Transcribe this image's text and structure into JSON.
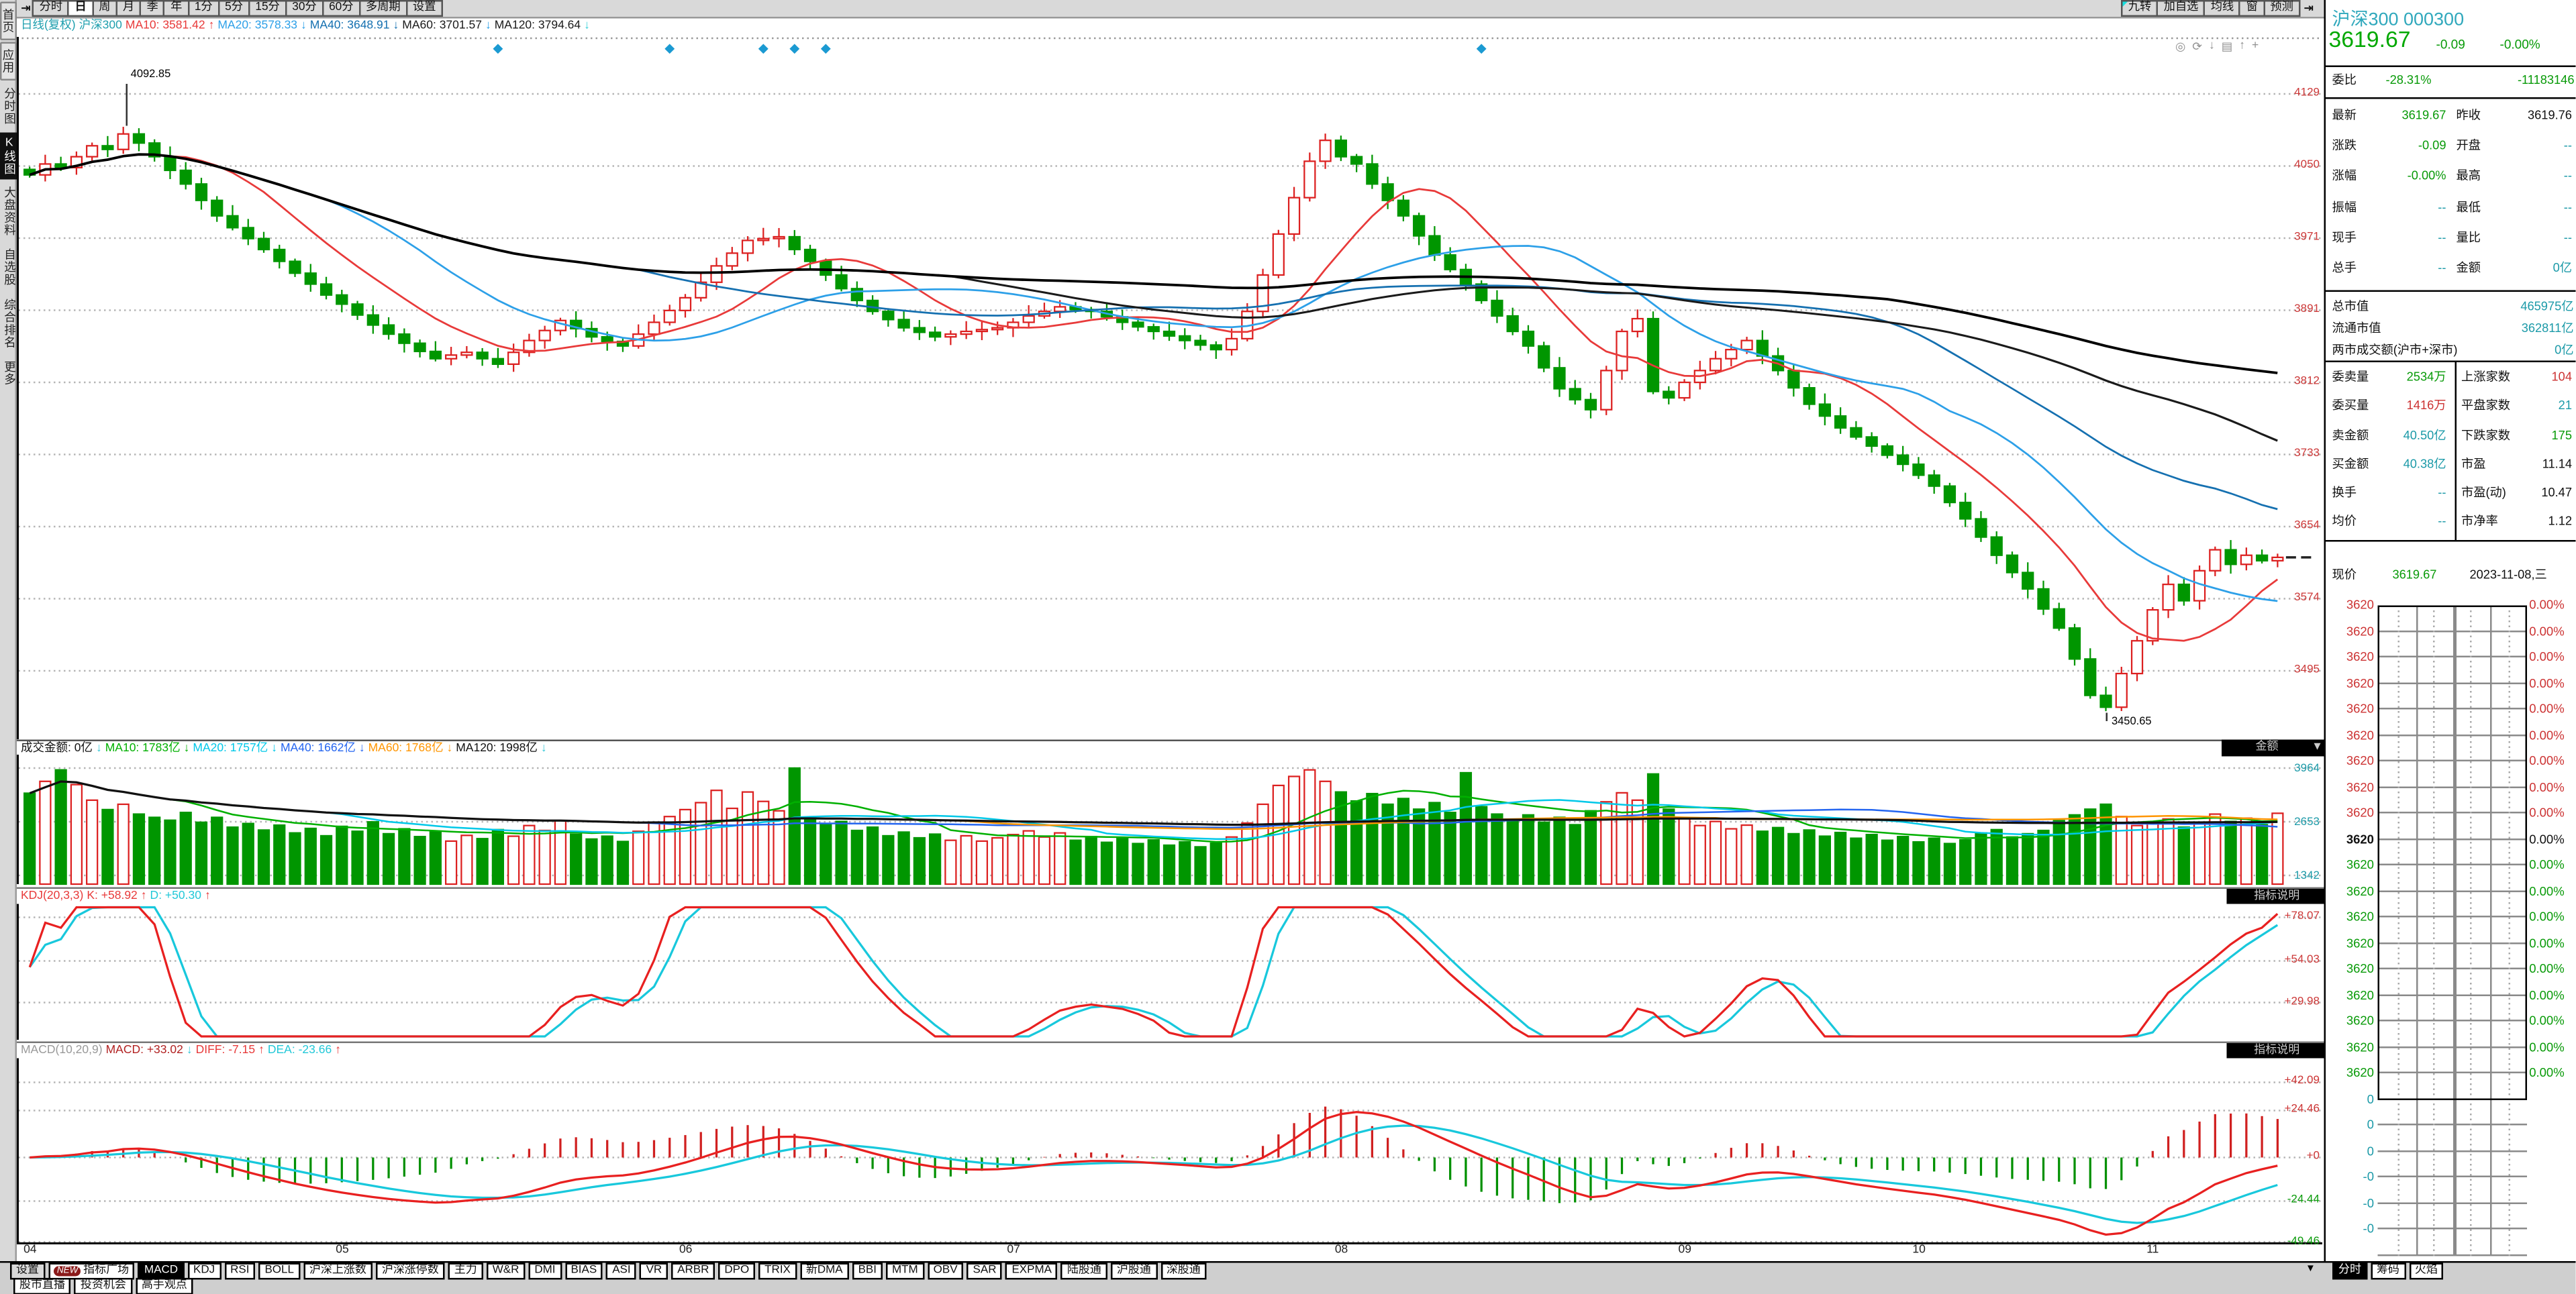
{
  "window": {
    "title": "K线图"
  },
  "sidebar": {
    "items": [
      {
        "label": "首页",
        "style": "raised"
      },
      {
        "label": "应用",
        "style": "raised"
      },
      {
        "label": "分时图",
        "style": "flat"
      },
      {
        "label": "K线图",
        "style": "flat",
        "selected": true
      },
      {
        "label": "大盘资料",
        "style": "flat"
      },
      {
        "label": "自选股",
        "style": "flat"
      },
      {
        "label": "综合排名",
        "style": "flat"
      },
      {
        "label": "更多",
        "style": "flat"
      }
    ]
  },
  "toolbar": {
    "collapse_icon": "⇥",
    "periods": [
      "分时",
      "日",
      "周",
      "月",
      "季",
      "年",
      "1分",
      "5分",
      "15分",
      "30分",
      "60分",
      "多周期",
      "设置"
    ],
    "selected_period": "日",
    "right_items": [
      "九转",
      "加自选",
      "均线",
      "窗",
      "预测"
    ],
    "panel_collapse_icon": "⇥"
  },
  "chart_tool_icons": [
    {
      "name": "eye-icon",
      "glyph": "◎"
    },
    {
      "name": "refresh-icon",
      "glyph": "⟳"
    },
    {
      "name": "download-icon",
      "glyph": "↓"
    },
    {
      "name": "print-icon",
      "glyph": "▤"
    },
    {
      "name": "export-icon",
      "glyph": "↑"
    },
    {
      "name": "add-icon",
      "glyph": "+"
    }
  ],
  "main_header": {
    "items": [
      {
        "text": "日线(复权)",
        "color": "#1f9fae"
      },
      {
        "text": "沪深300",
        "color": "#1f9fae"
      },
      {
        "text": "MA10: 3581.42",
        "color": "#e83a3a",
        "arrow": "↑",
        "arrow_color": "#e83a3a"
      },
      {
        "text": "MA20: 3578.33",
        "color": "#2da0e8",
        "arrow": "↓",
        "arrow_color": "#2da0e8"
      },
      {
        "text": "MA40: 3648.91",
        "color": "#1570b0",
        "arrow": "↓",
        "arrow_color": "#1570b0"
      },
      {
        "text": "MA60: 3701.57",
        "color": "#1a1a1a",
        "arrow": "↓",
        "arrow_color": "#2da0e8"
      },
      {
        "text": "MA120: 3794.64",
        "color": "#1a1a1a",
        "arrow": "↓",
        "arrow_color": "#35d0d8"
      }
    ]
  },
  "volume_header": {
    "items": [
      {
        "text": "成交金额: 0亿",
        "color": "#111",
        "arrow": "↓",
        "arrow_color": "#35c8d8"
      },
      {
        "text": "MA10: 1783亿",
        "color": "#00b000",
        "arrow": "↓",
        "arrow_color": "#00b000"
      },
      {
        "text": "MA20: 1757亿",
        "color": "#00c8e8",
        "arrow": "↓",
        "arrow_color": "#00c8e8"
      },
      {
        "text": "MA40: 1662亿",
        "color": "#2465f0",
        "arrow": "↓",
        "arrow_color": "#2465f0"
      },
      {
        "text": "MA60: 1768亿",
        "color": "#ff9500",
        "arrow": "↓",
        "arrow_color": "#ff9500"
      },
      {
        "text": "MA120: 1998亿",
        "color": "#111",
        "arrow": "↓",
        "arrow_color": "#35c8d8"
      }
    ],
    "amount_button": {
      "label": "金额",
      "arrow": "▼"
    }
  },
  "kdj_header": {
    "items": [
      {
        "text": "KDJ(20,3,3)",
        "color": "#e83a3a"
      },
      {
        "text": "K: +58.92",
        "color": "#e83a3a",
        "arrow": "↑",
        "arrow_color": "#e83a3a"
      },
      {
        "text": "D: +50.30",
        "color": "#22c8d8",
        "arrow": "↑",
        "arrow_color": "#e83a3a"
      }
    ],
    "button": "指标说明"
  },
  "macd_header": {
    "items": [
      {
        "text": "MACD(10,20,9)",
        "color": "#999999"
      },
      {
        "text": "MACD: +33.02",
        "color": "#b22222",
        "arrow": "↓",
        "arrow_color": "#35c8d8"
      },
      {
        "text": "DIFF: -7.15",
        "color": "#e83a3a",
        "arrow": "↑",
        "arrow_color": "#e83a3a"
      },
      {
        "text": "DEA: -23.66",
        "color": "#22c8d8",
        "arrow": "↑",
        "arrow_color": "#e83a3a"
      }
    ],
    "button": "指标说明"
  },
  "axis": {
    "main_labels": [
      "4129",
      "4050",
      "3971",
      "3891",
      "3812",
      "3733",
      "3654",
      "3574",
      "3495"
    ],
    "volume_labels": [
      "3964",
      "2653",
      "1342"
    ],
    "kdj_labels": [
      "+78.07",
      "+54.03",
      "+29.98"
    ],
    "macd_labels": [
      {
        "text": "+42.09",
        "color": "#cc3333"
      },
      {
        "text": "+24.46",
        "color": "#cc3333"
      },
      {
        "text": "+0",
        "color": "#cc3333"
      },
      {
        "text": "-24.44",
        "color": "#089a08"
      },
      {
        "text": "-49.46",
        "color": "#089a08"
      }
    ]
  },
  "chart_data": {
    "type": "candlestick",
    "symbol": "沪深300",
    "period": "日线",
    "title": "沪深300 日线(复权)",
    "ylim": [
      3421,
      4188
    ],
    "grid": true,
    "x_months": [
      {
        "label": "04",
        "idx": 0
      },
      {
        "label": "05",
        "idx": 20
      },
      {
        "label": "06",
        "idx": 42
      },
      {
        "label": "07",
        "idx": 63
      },
      {
        "label": "08",
        "idx": 84
      },
      {
        "label": "09",
        "idx": 106
      },
      {
        "label": "10",
        "idx": 121
      },
      {
        "label": "11",
        "idx": 136
      }
    ],
    "closes": [
      4040,
      4052,
      4048,
      4060,
      4072,
      4068,
      4085,
      4075,
      4060,
      4045,
      4030,
      4012,
      3995,
      3982,
      3970,
      3958,
      3945,
      3932,
      3920,
      3908,
      3898,
      3886,
      3875,
      3865,
      3855,
      3846,
      3838,
      3842,
      3845,
      3838,
      3832,
      3845,
      3858,
      3869,
      3880,
      3871,
      3862,
      3857,
      3852,
      3865,
      3878,
      3891,
      3905,
      3922,
      3940,
      3954,
      3968,
      3970,
      3972,
      3958,
      3945,
      3930,
      3915,
      3902,
      3890,
      3881,
      3872,
      3867,
      3862,
      3865,
      3868,
      3870,
      3872,
      3878,
      3885,
      3890,
      3895,
      3892,
      3890,
      3884,
      3878,
      3873,
      3868,
      3863,
      3858,
      3853,
      3848,
      3860,
      3890,
      3930,
      3975,
      4015,
      4055,
      4078,
      4060,
      4052,
      4030,
      4012,
      3995,
      3973,
      3952,
      3936,
      3920,
      3902,
      3885,
      3868,
      3852,
      3828,
      3805,
      3793,
      3782,
      3825,
      3868,
      3882,
      3802,
      3795,
      3812,
      3825,
      3838,
      3848,
      3858,
      3841,
      3825,
      3806,
      3788,
      3775,
      3762,
      3752,
      3742,
      3732,
      3722,
      3710,
      3698,
      3680,
      3662,
      3642,
      3622,
      3603,
      3585,
      3563,
      3542,
      3508,
      3468,
      3455,
      3492,
      3528,
      3562,
      3590,
      3572,
      3605,
      3628,
      3612,
      3622,
      3616,
      3619.67
    ],
    "volumes": [
      3350,
      3640,
      3920,
      3560,
      3180,
      2950,
      3080,
      2840,
      2760,
      2690,
      2880,
      2640,
      2760,
      2520,
      2610,
      2450,
      2570,
      2380,
      2490,
      2310,
      2540,
      2420,
      2650,
      2360,
      2480,
      2290,
      2410,
      2180,
      2320,
      2240,
      2460,
      2300,
      2560,
      2440,
      2680,
      2350,
      2230,
      2300,
      2170,
      2420,
      2640,
      2780,
      2950,
      3120,
      3420,
      2980,
      3380,
      3150,
      2920,
      3964,
      2760,
      2580,
      2660,
      2440,
      2520,
      2310,
      2400,
      2260,
      2350,
      2200,
      2310,
      2180,
      2260,
      2340,
      2430,
      2280,
      2380,
      2200,
      2290,
      2150,
      2240,
      2120,
      2210,
      2080,
      2160,
      2040,
      2130,
      2280,
      2620,
      3080,
      3540,
      3760,
      3920,
      3640,
      3380,
      3160,
      3340,
      3080,
      3220,
      2960,
      3120,
      2880,
      3850,
      3020,
      2840,
      2700,
      2820,
      2640,
      2760,
      2580,
      2920,
      3140,
      3360,
      3180,
      3820,
      2960,
      2740,
      2560,
      2660,
      2480,
      2570,
      2420,
      2510,
      2360,
      2450,
      2300,
      2390,
      2250,
      2340,
      2200,
      2290,
      2160,
      2250,
      2120,
      2210,
      2380,
      2460,
      2280,
      2360,
      2440,
      2680,
      2820,
      2960,
      3080,
      2780,
      2560,
      2640,
      2720,
      2520,
      2600,
      2840,
      2660,
      2740,
      2580,
      2860
    ],
    "high_annotation": {
      "text": "4092.85",
      "idx": 6,
      "value": 4092.85
    },
    "low_annotation": {
      "text": "3450.65",
      "idx": 133,
      "value": 3450.65
    },
    "event_marker_idx": [
      30,
      41,
      47,
      49,
      51,
      93
    ],
    "last_price": 3619.67
  },
  "quote_panel": {
    "title": "沪深300 000300",
    "price": "3619.67",
    "change": "-0.09",
    "change_pct": "-0.00%",
    "weibi": {
      "label": "委比",
      "value": "-28.31%",
      "extra": "-11183146"
    },
    "rows_a": [
      {
        "l1": "最新",
        "v1": "3619.67",
        "c1": "g",
        "l2": "昨收",
        "v2": "3619.76",
        "c2": "k"
      },
      {
        "l1": "涨跌",
        "v1": "-0.09",
        "c1": "g",
        "l2": "开盘",
        "v2": "--",
        "c2": "c"
      },
      {
        "l1": "涨幅",
        "v1": "-0.00%",
        "c1": "g",
        "l2": "最高",
        "v2": "--",
        "c2": "c"
      },
      {
        "l1": "振幅",
        "v1": "--",
        "c1": "c",
        "l2": "最低",
        "v2": "--",
        "c2": "c"
      },
      {
        "l1": "现手",
        "v1": "--",
        "c1": "c",
        "l2": "量比",
        "v2": "--",
        "c2": "c"
      },
      {
        "l1": "总手",
        "v1": "--",
        "c1": "c",
        "l2": "金额",
        "v2": "0亿",
        "c2": "c"
      }
    ],
    "rows_b": [
      {
        "l": "总市值",
        "v": "465975亿"
      },
      {
        "l": "流通市值",
        "v": "362811亿"
      },
      {
        "l": "两市成交额(沪市+深市)",
        "v": "0亿"
      }
    ],
    "rows_c": [
      {
        "l1": "委卖量",
        "v1": "2534万",
        "c1": "g",
        "l2": "上涨家数",
        "v2": "104",
        "c2": "r"
      },
      {
        "l1": "委买量",
        "v1": "1416万",
        "c1": "r",
        "l2": "平盘家数",
        "v2": "21",
        "c2": "c"
      },
      {
        "l1": "卖金额",
        "v1": "40.50亿",
        "c1": "c",
        "l2": "下跌家数",
        "v2": "175",
        "c2": "g"
      },
      {
        "l1": "买金额",
        "v1": "40.38亿",
        "c1": "c",
        "l2": "市盈",
        "v2": "11.14",
        "c2": "k"
      },
      {
        "l1": "换手",
        "v1": "--",
        "c1": "c",
        "l2": "市盈(动)",
        "v2": "10.47",
        "c2": "k"
      },
      {
        "l1": "均价",
        "v1": "--",
        "c1": "c",
        "l2": "市净率",
        "v2": "1.12",
        "c2": "k"
      }
    ],
    "current": {
      "label": "现价",
      "value": "3619.67",
      "date": "2023-11-08,三"
    },
    "ladder": {
      "rows": [
        [
          "3620",
          "0.00%",
          "r"
        ],
        [
          "3620",
          "0.00%",
          "r"
        ],
        [
          "3620",
          "0.00%",
          "r"
        ],
        [
          "3620",
          "0.00%",
          "r"
        ],
        [
          "3620",
          "0.00%",
          "r"
        ],
        [
          "3620",
          "0.00%",
          "r"
        ],
        [
          "3620",
          "0.00%",
          "r"
        ],
        [
          "3620",
          "0.00%",
          "r"
        ],
        [
          "3620",
          "0.00%",
          "r"
        ],
        [
          "3620",
          "0.00%",
          "k"
        ],
        [
          "3620",
          "0.00%",
          "g"
        ],
        [
          "3620",
          "0.00%",
          "g"
        ],
        [
          "3620",
          "0.00%",
          "g"
        ],
        [
          "3620",
          "0.00%",
          "g"
        ],
        [
          "3620",
          "0.00%",
          "g"
        ],
        [
          "3620",
          "0.00%",
          "g"
        ],
        [
          "3620",
          "0.00%",
          "g"
        ],
        [
          "3620",
          "0.00%",
          "g"
        ],
        [
          "3620",
          "0.00%",
          "g"
        ],
        [
          "0",
          "",
          "c"
        ],
        [
          "0",
          "",
          "c"
        ],
        [
          "0",
          "",
          "c"
        ],
        [
          "-0",
          "",
          "c"
        ],
        [
          "-0",
          "",
          "c"
        ],
        [
          "-0",
          "",
          "c"
        ]
      ]
    }
  },
  "bottom": {
    "indicator_tabs": [
      {
        "label": "设置",
        "style": "raised"
      },
      {
        "label": "指标广场",
        "badge": "NEW"
      },
      {
        "label": "MACD",
        "selected": true
      },
      {
        "label": "KDJ"
      },
      {
        "label": "RSI"
      },
      {
        "label": "BOLL"
      },
      {
        "label": "沪深上涨数"
      },
      {
        "label": "沪深涨停数"
      },
      {
        "label": "主力"
      },
      {
        "label": "W&R"
      },
      {
        "label": "DMI"
      },
      {
        "label": "BIAS"
      },
      {
        "label": "ASI"
      },
      {
        "label": "VR"
      },
      {
        "label": "ARBR"
      },
      {
        "label": "DPO"
      },
      {
        "label": "TRIX"
      },
      {
        "label": "新DMA"
      },
      {
        "label": "BBI"
      },
      {
        "label": "MTM"
      },
      {
        "label": "OBV"
      },
      {
        "label": "SAR"
      },
      {
        "label": "EXPMA"
      },
      {
        "label": "陆股通"
      },
      {
        "label": "沪股通"
      },
      {
        "label": "深股通"
      }
    ],
    "more_arrow": "▼",
    "channel_tabs": [
      "股市直播",
      "投资机会",
      "高手观点"
    ],
    "panel_tabs": [
      {
        "label": "分时",
        "selected": true
      },
      {
        "label": "筹码"
      },
      {
        "label": "火焰"
      }
    ]
  },
  "colors": {
    "up": "#dc2020",
    "down": "#009600",
    "accent_teal": "#1c9aa8",
    "green_text": "#089a08",
    "red_text": "#cc3333"
  }
}
